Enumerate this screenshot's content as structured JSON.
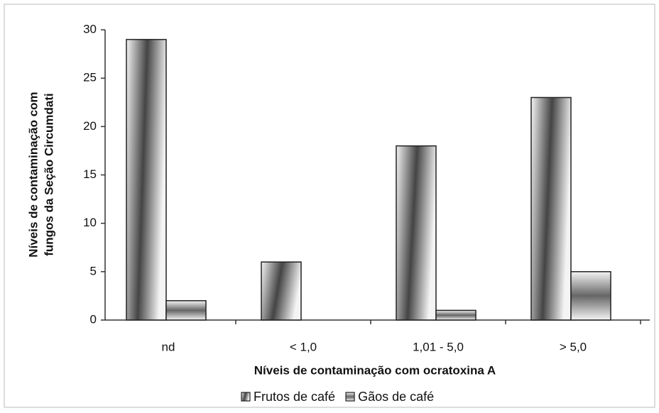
{
  "chart_data": {
    "type": "bar",
    "ylabel": [
      "Níveis de contaminação com",
      "fungos da Seção Circumdati"
    ],
    "xlabel": "Níveis de contaminação com ocratoxina A",
    "categories": [
      "nd",
      "< 1,0",
      "1,01 - 5,0",
      "> 5,0"
    ],
    "series": [
      {
        "name": "Frutos de café",
        "color": "#444444",
        "values": [
          29,
          6,
          18,
          23
        ]
      },
      {
        "name": "Gãos de café",
        "color": "#666666",
        "values": [
          2,
          0,
          1,
          5
        ]
      }
    ],
    "ylim": [
      0,
      30
    ],
    "yticks": [
      0,
      5,
      10,
      15,
      20,
      25,
      30
    ]
  }
}
